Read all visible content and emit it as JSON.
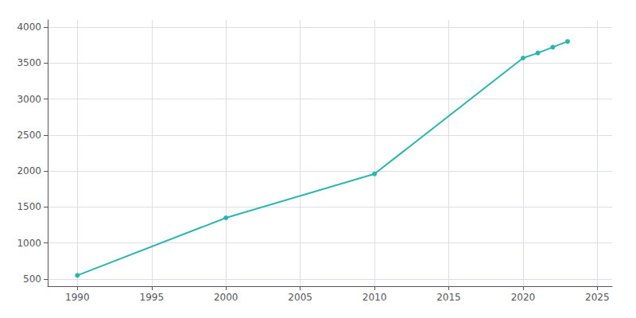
{
  "chart_data": {
    "type": "line",
    "x": [
      1990,
      2000,
      2010,
      2020,
      2021,
      2022,
      2023
    ],
    "values": [
      550,
      1350,
      1960,
      3570,
      3640,
      3720,
      3800
    ],
    "color": "#2ab5b0",
    "marker": "circle",
    "xlim": [
      1988,
      2026
    ],
    "ylim": [
      400,
      4100
    ],
    "xticks": [
      1990,
      1995,
      2000,
      2005,
      2010,
      2015,
      2020,
      2025
    ],
    "yticks": [
      500,
      1000,
      1500,
      2000,
      2500,
      3000,
      3500,
      4000
    ],
    "grid": true
  }
}
